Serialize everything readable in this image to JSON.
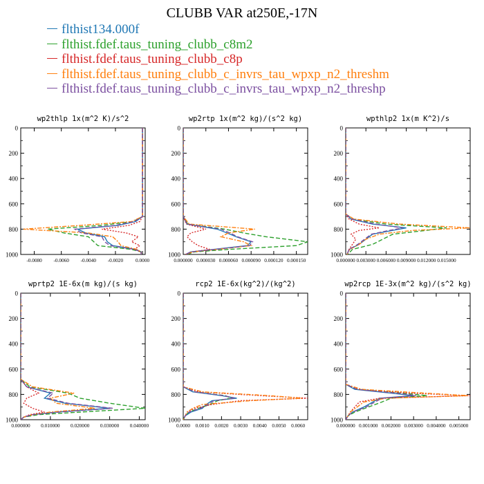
{
  "title": "CLUBB VAR at250E,-17N",
  "legend": [
    {
      "label": "flthist134.000f",
      "color": "#1f77b4",
      "dash": "solid"
    },
    {
      "label": "flthist.fdef.taus_tuning_clubb_c8m2",
      "color": "#2ca02c",
      "dash": "dash"
    },
    {
      "label": "flthist.fdef.taus_tuning_clubb_c8p",
      "color": "#d62728",
      "dash": "dot"
    },
    {
      "label": "flthist.fdef.taus_tuning_clubb_c_invrs_tau_wpxp_n2_threshm",
      "color": "#ff7f0e",
      "dash": "dashdot"
    },
    {
      "label": "flthist.fdef.taus_tuning_clubb_c_invrs_tau_wpxp_n2_threshp",
      "color": "#7b4fa0",
      "dash": "dash"
    }
  ],
  "chart_data": [
    {
      "type": "line",
      "title": "wp2thlp  1x(m^2 K)/s^2",
      "xlim": [
        -0.009,
        0.0002
      ],
      "xticks": [
        -0.008,
        -0.006,
        -0.004,
        -0.002,
        0.0
      ],
      "xtick_labels": [
        "-0.0080",
        "-0.0060",
        "-0.0040",
        "-0.0020",
        "0.0000"
      ],
      "ylim": [
        1000,
        0
      ],
      "yticks": [
        0,
        200,
        400,
        600,
        800,
        1000
      ],
      "ytick_labels": [
        "0",
        "200",
        "400",
        "600",
        "800",
        "1000"
      ],
      "series": [
        {
          "y": [
            0,
            700,
            740,
            770,
            800,
            830,
            860,
            900,
            930,
            960,
            980,
            1000
          ],
          "x": [
            0.0,
            0.0,
            -0.0005,
            -0.0018,
            -0.0048,
            -0.0042,
            -0.0028,
            -0.0026,
            -0.0022,
            -0.0005,
            -0.0001,
            -0.0001
          ]
        },
        {
          "y": [
            0,
            700,
            740,
            770,
            800,
            830,
            860,
            900,
            930,
            960,
            980,
            1000
          ],
          "x": [
            0.0,
            0.0,
            -0.0007,
            -0.003,
            -0.007,
            -0.0058,
            -0.004,
            -0.0036,
            -0.0033,
            -0.0008,
            -0.0001,
            -0.0001
          ]
        },
        {
          "y": [
            0,
            700,
            740,
            770,
            800,
            830,
            860,
            900,
            930,
            960,
            980,
            1000
          ],
          "x": [
            0.0,
            0.0,
            -0.0002,
            -0.001,
            -0.003,
            -0.0012,
            -0.0003,
            -0.0008,
            -0.0002,
            -0.0006,
            -0.0001,
            -0.0001
          ]
        },
        {
          "y": [
            0,
            700,
            740,
            770,
            800,
            830,
            860,
            900,
            930,
            960,
            980,
            1000
          ],
          "x": [
            0.0,
            0.0,
            -0.0008,
            -0.0045,
            -0.0088,
            -0.004,
            -0.0022,
            -0.0018,
            -0.0016,
            -0.0004,
            -0.0001,
            -0.0001
          ]
        },
        {
          "y": [
            0,
            700,
            740,
            770,
            800,
            830,
            860,
            900,
            930,
            960,
            980,
            1000
          ],
          "x": [
            0.0,
            0.0,
            -0.0006,
            -0.002,
            -0.005,
            -0.0045,
            -0.003,
            -0.0028,
            -0.0024,
            -0.0006,
            -0.0001,
            -0.0001
          ]
        }
      ]
    },
    {
      "type": "line",
      "title": "wp2rtp  1x(m^2 kg)/(s^2 kg)",
      "xlim": [
        0.0,
        0.000165
      ],
      "xticks": [
        0.0,
        3e-05,
        6e-05,
        9e-05,
        0.00012,
        0.00015
      ],
      "xtick_labels": [
        "0.000000",
        "0.000030",
        "0.000060",
        "0.000090",
        "0.000120",
        "0.000150"
      ],
      "ylim": [
        1000,
        0
      ],
      "yticks": [
        0,
        200,
        400,
        600,
        800,
        1000
      ],
      "ytick_labels": [
        "0",
        "200",
        "400",
        "600",
        "800",
        "1000"
      ],
      "series": [
        {
          "y": [
            0,
            700,
            760,
            800,
            830,
            860,
            900,
            930,
            960,
            980,
            1000
          ],
          "x": [
            0.0,
            0.0,
            5e-06,
            4.5e-05,
            5.8e-05,
            7e-05,
            9e-05,
            8.5e-05,
            4e-05,
            1e-05,
            3e-06
          ]
        },
        {
          "y": [
            0,
            700,
            760,
            800,
            830,
            860,
            900,
            930,
            960,
            980,
            1000
          ],
          "x": [
            0.0,
            0.0,
            6e-06,
            5.5e-05,
            8e-05,
            0.00011,
            0.000165,
            0.00015,
            6e-05,
            1.5e-05,
            5e-06
          ]
        },
        {
          "y": [
            0,
            700,
            760,
            800,
            830,
            860,
            900,
            930,
            960,
            980,
            1000
          ],
          "x": [
            0.0,
            0.0,
            4e-06,
            3e-05,
            1e-05,
            5e-06,
            1.2e-05,
            2e-05,
            3.5e-05,
            1.2e-05,
            3e-06
          ]
        },
        {
          "y": [
            0,
            700,
            760,
            800,
            830,
            860,
            900,
            930,
            960,
            980,
            1000
          ],
          "x": [
            0.0,
            0.0,
            8e-06,
            9.5e-05,
            6e-05,
            5e-05,
            8e-05,
            9e-05,
            4.5e-05,
            1.2e-05,
            4e-06
          ]
        },
        {
          "y": [
            0,
            700,
            760,
            800,
            830,
            860,
            900,
            930,
            960,
            980,
            1000
          ],
          "x": [
            0.0,
            0.0,
            5e-06,
            5e-05,
            6.2e-05,
            7.2e-05,
            9.2e-05,
            8.8e-05,
            4.2e-05,
            1e-05,
            3e-06
          ]
        }
      ]
    },
    {
      "type": "line",
      "title": "wpthlp2  1x(m K^2)/s",
      "xlim": [
        0.0,
        0.0185
      ],
      "xticks": [
        0.0,
        0.003,
        0.006,
        0.009,
        0.012,
        0.015
      ],
      "xtick_labels": [
        "0.000000",
        "0.003000",
        "0.006000",
        "0.009000",
        "0.012000",
        "0.015000"
      ],
      "ylim": [
        1000,
        0
      ],
      "yticks": [
        0,
        200,
        400,
        600,
        800,
        1000
      ],
      "ytick_labels": [
        "0",
        "200",
        "400",
        "600",
        "800",
        "1000"
      ],
      "series": [
        {
          "y": [
            0,
            680,
            720,
            760,
            790,
            810,
            840,
            880,
            920,
            960,
            1000
          ],
          "x": [
            0.0,
            0.0,
            0.0008,
            0.004,
            0.009,
            0.007,
            0.004,
            0.003,
            0.002,
            0.0005,
            0.0002
          ]
        },
        {
          "y": [
            0,
            680,
            720,
            760,
            790,
            810,
            840,
            880,
            920,
            960,
            1000
          ],
          "x": [
            0.0,
            0.0,
            0.001,
            0.006,
            0.015,
            0.012,
            0.007,
            0.0055,
            0.004,
            0.001,
            0.0003
          ]
        },
        {
          "y": [
            0,
            680,
            720,
            760,
            790,
            810,
            840,
            880,
            920,
            960,
            1000
          ],
          "x": [
            0.0,
            0.0,
            0.0005,
            0.002,
            0.005,
            0.002,
            0.0008,
            0.0015,
            0.001,
            0.0005,
            0.0002
          ]
        },
        {
          "y": [
            0,
            680,
            720,
            760,
            790,
            810,
            840,
            880,
            920,
            960,
            1000
          ],
          "x": [
            0.0,
            0.0,
            0.0012,
            0.008,
            0.0185,
            0.01,
            0.005,
            0.003,
            0.002,
            0.0006,
            0.0002
          ]
        },
        {
          "y": [
            0,
            680,
            720,
            760,
            790,
            810,
            840,
            880,
            920,
            960,
            1000
          ],
          "x": [
            0.0,
            0.0,
            0.0009,
            0.0045,
            0.0085,
            0.0065,
            0.0038,
            0.0028,
            0.0018,
            0.0005,
            0.0002
          ]
        }
      ]
    },
    {
      "type": "line",
      "title": "wprtp2  1E-6x(m kg)/(s kg)",
      "xlim": [
        0.0,
        0.042
      ],
      "xticks": [
        0.0,
        0.01,
        0.02,
        0.03,
        0.04
      ],
      "xtick_labels": [
        "0.000000",
        "0.010000",
        "0.020000",
        "0.030000",
        "0.040000"
      ],
      "ylim": [
        1000,
        0
      ],
      "yticks": [
        0,
        200,
        400,
        600,
        800,
        1000
      ],
      "ytick_labels": [
        "0",
        "200",
        "400",
        "600",
        "800",
        "1000"
      ],
      "series": [
        {
          "y": [
            0,
            680,
            740,
            790,
            830,
            870,
            910,
            940,
            960,
            980,
            1000
          ],
          "x": [
            0.0,
            0.0,
            0.002,
            0.01,
            0.008,
            0.015,
            0.03,
            0.012,
            0.004,
            0.001,
            0.0
          ]
        },
        {
          "y": [
            0,
            680,
            740,
            790,
            830,
            870,
            910,
            940,
            960,
            980,
            1000
          ],
          "x": [
            0.0,
            0.0,
            0.003,
            0.016,
            0.02,
            0.03,
            0.042,
            0.02,
            0.006,
            0.001,
            0.0
          ]
        },
        {
          "y": [
            0,
            680,
            740,
            790,
            830,
            870,
            910,
            940,
            960,
            980,
            1000
          ],
          "x": [
            0.0,
            0.0,
            0.002,
            0.006,
            0.002,
            0.001,
            0.004,
            0.008,
            0.003,
            0.001,
            0.0
          ]
        },
        {
          "y": [
            0,
            680,
            740,
            790,
            830,
            870,
            910,
            940,
            960,
            980,
            1000
          ],
          "x": [
            0.0,
            0.0,
            0.004,
            0.018,
            0.01,
            0.012,
            0.025,
            0.01,
            0.004,
            0.001,
            0.0
          ]
        },
        {
          "y": [
            0,
            680,
            740,
            790,
            830,
            870,
            910,
            940,
            960,
            980,
            1000
          ],
          "x": [
            0.0,
            0.0,
            0.002,
            0.011,
            0.009,
            0.016,
            0.031,
            0.013,
            0.004,
            0.001,
            0.0
          ]
        }
      ]
    },
    {
      "type": "line",
      "title": "rcp2  1E-6x(kg^2)/(kg^2)",
      "xlim": [
        0.0,
        0.0065
      ],
      "xticks": [
        0.0,
        0.001,
        0.002,
        0.003,
        0.004,
        0.005,
        0.006
      ],
      "xtick_labels": [
        "0.0000",
        "0.0010",
        "0.0020",
        "0.0030",
        "0.0040",
        "0.0050",
        "0.0060"
      ],
      "ylim": [
        1000,
        0
      ],
      "yticks": [
        0,
        200,
        400,
        600,
        800,
        1000
      ],
      "ytick_labels": [
        "0",
        "200",
        "400",
        "600",
        "800",
        "1000"
      ],
      "series": [
        {
          "y": [
            0,
            740,
            780,
            810,
            830,
            850,
            880,
            910,
            940,
            970,
            1000
          ],
          "x": [
            0.0,
            0.0,
            0.0005,
            0.002,
            0.0028,
            0.0015,
            0.0012,
            0.001,
            0.0004,
            0.0001,
            0.0
          ]
        },
        {
          "y": [
            0,
            740,
            780,
            810,
            830,
            850,
            880,
            910,
            940,
            970,
            1000
          ],
          "x": [
            0.0,
            0.0,
            0.0006,
            0.0022,
            0.0025,
            0.0018,
            0.0014,
            0.0008,
            0.0003,
            0.0001,
            0.0
          ]
        },
        {
          "y": [
            0,
            740,
            780,
            810,
            830,
            850,
            880,
            910,
            940,
            970,
            1000
          ],
          "x": [
            0.0,
            0.0,
            0.0008,
            0.004,
            0.0065,
            0.003,
            0.0015,
            0.0006,
            0.0002,
            0.0001,
            0.0
          ]
        },
        {
          "y": [
            0,
            740,
            780,
            810,
            830,
            850,
            880,
            910,
            940,
            970,
            1000
          ],
          "x": [
            0.0,
            0.0,
            0.001,
            0.0045,
            0.0062,
            0.0035,
            0.001,
            0.0005,
            0.0002,
            0.0001,
            0.0
          ]
        },
        {
          "y": [
            0,
            740,
            780,
            810,
            830,
            850,
            880,
            910,
            940,
            970,
            1000
          ],
          "x": [
            0.0,
            0.0,
            0.0006,
            0.0021,
            0.0027,
            0.0016,
            0.0013,
            0.0009,
            0.0003,
            0.0001,
            0.0
          ]
        }
      ]
    },
    {
      "type": "line",
      "title": "wp2rcp  1E-3x(m^2 kg)/(s^2 kg)",
      "xlim": [
        0.0,
        0.0055
      ],
      "xticks": [
        0.0,
        0.001,
        0.002,
        0.003,
        0.004,
        0.005
      ],
      "xtick_labels": [
        "0.000000",
        "0.001000",
        "0.002000",
        "0.003000",
        "0.004000",
        "0.005000"
      ],
      "ylim": [
        1000,
        0
      ],
      "yticks": [
        0,
        200,
        400,
        600,
        800,
        1000
      ],
      "ytick_labels": [
        "0",
        "200",
        "400",
        "600",
        "800",
        "1000"
      ],
      "series": [
        {
          "y": [
            0,
            720,
            760,
            790,
            810,
            830,
            860,
            900,
            940,
            970,
            1000
          ],
          "x": [
            0.0,
            0.0,
            0.0004,
            0.002,
            0.003,
            0.0015,
            0.0012,
            0.0008,
            0.0003,
            0.0001,
            0.0
          ]
        },
        {
          "y": [
            0,
            720,
            760,
            790,
            810,
            830,
            860,
            900,
            940,
            970,
            1000
          ],
          "x": [
            0.0,
            0.0,
            0.0005,
            0.0025,
            0.0036,
            0.002,
            0.0016,
            0.001,
            0.0004,
            0.0001,
            0.0
          ]
        },
        {
          "y": [
            0,
            720,
            760,
            790,
            810,
            830,
            860,
            900,
            940,
            970,
            1000
          ],
          "x": [
            0.0,
            0.0,
            0.0006,
            0.0028,
            0.0055,
            0.0015,
            0.0006,
            0.0004,
            0.0002,
            0.0001,
            0.0
          ]
        },
        {
          "y": [
            0,
            720,
            760,
            790,
            810,
            830,
            860,
            900,
            940,
            970,
            1000
          ],
          "x": [
            0.0,
            0.0,
            0.0007,
            0.0035,
            0.0054,
            0.0018,
            0.0008,
            0.0005,
            0.0002,
            0.0001,
            0.0
          ]
        },
        {
          "y": [
            0,
            720,
            760,
            790,
            810,
            830,
            860,
            900,
            940,
            970,
            1000
          ],
          "x": [
            0.0,
            0.0,
            0.0005,
            0.0022,
            0.0031,
            0.0016,
            0.0013,
            0.0009,
            0.0003,
            0.0001,
            0.0
          ]
        }
      ]
    }
  ]
}
